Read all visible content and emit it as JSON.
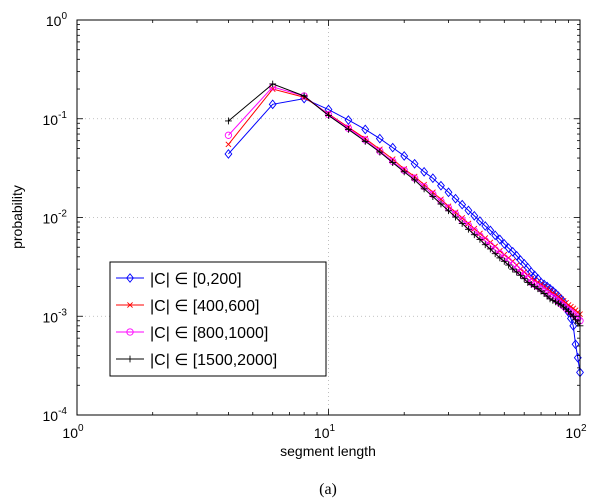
{
  "chart_data": {
    "type": "line",
    "xlabel": "segment length",
    "ylabel": "probability",
    "caption": "(a)",
    "xscale": "log",
    "yscale": "log",
    "xlim": [
      1,
      100
    ],
    "ylim": [
      0.0001,
      1
    ],
    "grid": true,
    "legend_position": "bottom-left",
    "x_ticks": [
      {
        "base": "10",
        "exp": "0",
        "value": 1
      },
      {
        "base": "10",
        "exp": "1",
        "value": 10
      },
      {
        "base": "10",
        "exp": "2",
        "value": 100
      }
    ],
    "y_ticks": [
      {
        "base": "10",
        "exp": "-4",
        "value": 0.0001
      },
      {
        "base": "10",
        "exp": "-3",
        "value": 0.001
      },
      {
        "base": "10",
        "exp": "-2",
        "value": 0.01
      },
      {
        "base": "10",
        "exp": "-1",
        "value": 0.1
      },
      {
        "base": "10",
        "exp": "0",
        "value": 1
      }
    ],
    "series": [
      {
        "name": "|C| ∈ [0,200]",
        "color": "#0000ff",
        "marker": "diamond",
        "x": [
          4,
          6,
          8,
          10,
          12,
          14,
          16,
          18,
          20,
          22,
          24,
          26,
          28,
          30,
          32,
          34,
          36,
          38,
          40,
          42,
          44,
          46,
          48,
          50,
          52,
          54,
          56,
          58,
          60,
          62,
          64,
          66,
          68,
          70,
          72,
          74,
          76,
          78,
          80,
          82,
          84,
          86,
          88,
          90,
          92,
          94,
          96,
          98,
          100
        ],
        "y": [
          0.044,
          0.14,
          0.16,
          0.124,
          0.097,
          0.078,
          0.063,
          0.051,
          0.042,
          0.035,
          0.029,
          0.025,
          0.021,
          0.018,
          0.0155,
          0.0135,
          0.0118,
          0.0104,
          0.0092,
          0.0082,
          0.0074,
          0.0066,
          0.006,
          0.0054,
          0.0049,
          0.0045,
          0.0041,
          0.0037,
          0.0034,
          0.0031,
          0.0028,
          0.0026,
          0.0024,
          0.0022,
          0.0021,
          0.002,
          0.0019,
          0.0018,
          0.0017,
          0.0016,
          0.0015,
          0.0014,
          0.00125,
          0.0011,
          0.00095,
          0.0008,
          0.00052,
          0.00038,
          0.00027
        ]
      },
      {
        "name": "|C| ∈ [400,600]",
        "color": "#ff0000",
        "marker": "x",
        "x": [
          4,
          6,
          8,
          10,
          12,
          14,
          16,
          18,
          20,
          22,
          24,
          26,
          28,
          30,
          32,
          34,
          36,
          38,
          40,
          42,
          44,
          46,
          48,
          50,
          52,
          54,
          56,
          58,
          60,
          62,
          64,
          66,
          68,
          70,
          72,
          74,
          76,
          78,
          80,
          82,
          84,
          86,
          88,
          90,
          92,
          94,
          96,
          98,
          100
        ],
        "y": [
          0.055,
          0.2,
          0.165,
          0.112,
          0.082,
          0.063,
          0.049,
          0.039,
          0.031,
          0.026,
          0.0215,
          0.018,
          0.0153,
          0.013,
          0.0113,
          0.0099,
          0.0087,
          0.0077,
          0.0069,
          0.0062,
          0.0056,
          0.0051,
          0.0046,
          0.0042,
          0.0039,
          0.0036,
          0.0033,
          0.003,
          0.0028,
          0.0026,
          0.0024,
          0.0023,
          0.0022,
          0.0021,
          0.002,
          0.0019,
          0.0018,
          0.00172,
          0.00165,
          0.00158,
          0.0015,
          0.00143,
          0.00137,
          0.0013,
          0.00125,
          0.0012,
          0.00115,
          0.0011,
          0.00105
        ]
      },
      {
        "name": "|C| ∈ [800,1000]",
        "color": "#ff00ff",
        "marker": "circle",
        "x": [
          4,
          6,
          8,
          10,
          12,
          14,
          16,
          18,
          20,
          22,
          24,
          26,
          28,
          30,
          32,
          34,
          36,
          38,
          40,
          42,
          44,
          46,
          48,
          50,
          52,
          54,
          56,
          58,
          60,
          62,
          64,
          66,
          68,
          70,
          72,
          74,
          76,
          78,
          80,
          82,
          84,
          86,
          88,
          90,
          92,
          94,
          96,
          98,
          100
        ],
        "y": [
          0.068,
          0.21,
          0.17,
          0.11,
          0.08,
          0.061,
          0.047,
          0.037,
          0.03,
          0.025,
          0.0205,
          0.0172,
          0.0146,
          0.0125,
          0.0108,
          0.0094,
          0.0083,
          0.0073,
          0.0065,
          0.0058,
          0.0052,
          0.0047,
          0.0043,
          0.0039,
          0.0036,
          0.0033,
          0.003,
          0.0028,
          0.0026,
          0.0024,
          0.0022,
          0.0021,
          0.002,
          0.0019,
          0.0018,
          0.0017,
          0.0016,
          0.00155,
          0.00148,
          0.0014,
          0.00133,
          0.00127,
          0.0012,
          0.00115,
          0.0011,
          0.00105,
          0.001,
          0.00095,
          0.0009
        ]
      },
      {
        "name": "|C| ∈ [1500,2000]",
        "color": "#000000",
        "marker": "plus",
        "x": [
          4,
          6,
          8,
          10,
          12,
          14,
          16,
          18,
          20,
          22,
          24,
          26,
          28,
          30,
          32,
          34,
          36,
          38,
          40,
          42,
          44,
          46,
          48,
          50,
          52,
          54,
          56,
          58,
          60,
          62,
          64,
          66,
          68,
          70,
          72,
          74,
          76,
          78,
          80,
          82,
          84,
          86,
          88,
          90,
          92,
          94,
          96,
          98,
          100
        ],
        "y": [
          0.095,
          0.225,
          0.17,
          0.108,
          0.078,
          0.059,
          0.046,
          0.036,
          0.029,
          0.024,
          0.0195,
          0.0163,
          0.0137,
          0.0117,
          0.0101,
          0.0087,
          0.0076,
          0.0067,
          0.006,
          0.0053,
          0.0048,
          0.0043,
          0.0039,
          0.0036,
          0.0033,
          0.003,
          0.0028,
          0.0026,
          0.0024,
          0.0022,
          0.0021,
          0.002,
          0.0019,
          0.0018,
          0.0017,
          0.0016,
          0.0015,
          0.00145,
          0.0014,
          0.00135,
          0.0013,
          0.00124,
          0.00118,
          0.00112,
          0.00105,
          0.001,
          0.00092,
          0.00085,
          0.0008
        ]
      }
    ]
  }
}
